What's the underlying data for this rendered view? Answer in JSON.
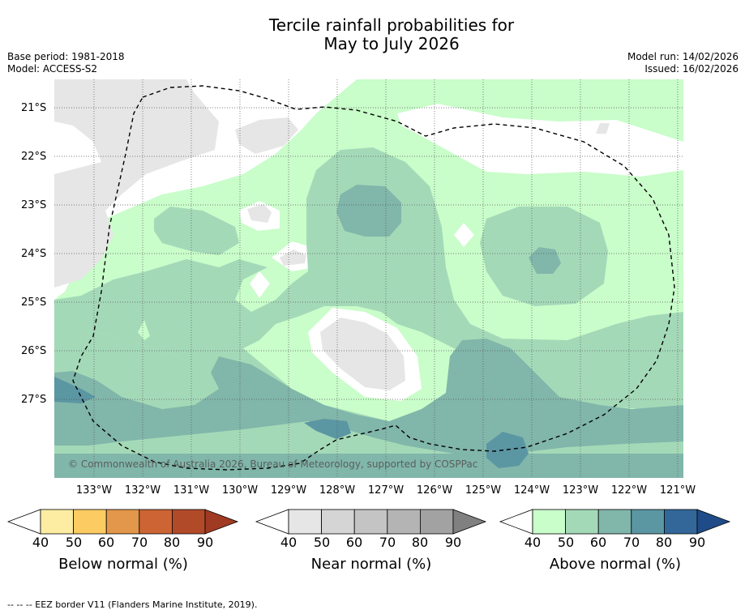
{
  "title_line1": "Tercile rainfall probabilities for",
  "title_line2": "May to July 2026",
  "meta_left": {
    "base_period": "Base period: 1981-2018",
    "model": "Model: ACCESS-S2"
  },
  "meta_right": {
    "model_run": "Model run: 14/02/2026",
    "issued": "Issued: 16/02/2026"
  },
  "lat_labels": [
    "21°S",
    "22°S",
    "23°S",
    "24°S",
    "25°S",
    "26°S",
    "27°S"
  ],
  "lon_labels": [
    "133°W",
    "132°W",
    "131°W",
    "130°W",
    "129°W",
    "128°W",
    "127°W",
    "126°W",
    "125°W",
    "124°W",
    "123°W",
    "122°W",
    "121°W"
  ],
  "copyright": "© Commonwealth of Australia 2026, Bureau of Meteorology, supported by COSPPac",
  "colorbars": [
    {
      "label": "Below normal (%)",
      "ticks": [
        "40",
        "50",
        "60",
        "70",
        "80",
        "90"
      ],
      "colors": [
        "#ffffff",
        "#fdeda3",
        "#fccb62",
        "#e2974b",
        "#cc6434",
        "#b14a28",
        "#a03a22"
      ]
    },
    {
      "label": "Near normal (%)",
      "ticks": [
        "40",
        "50",
        "60",
        "70",
        "80",
        "90"
      ],
      "colors": [
        "#ffffff",
        "#e6e6e6",
        "#d5d5d5",
        "#c4c4c4",
        "#b4b4b4",
        "#a2a2a2",
        "#808080"
      ]
    },
    {
      "label": "Above normal (%)",
      "ticks": [
        "40",
        "50",
        "60",
        "70",
        "80",
        "90"
      ],
      "colors": [
        "#ffffff",
        "#c9fdca",
        "#a4d9b8",
        "#81b6aa",
        "#5b96a3",
        "#33679a",
        "#1f4c88"
      ]
    }
  ],
  "footnote": "--  --  -- EEZ border V11 (Flanders Marine Institute, 2019)."
}
